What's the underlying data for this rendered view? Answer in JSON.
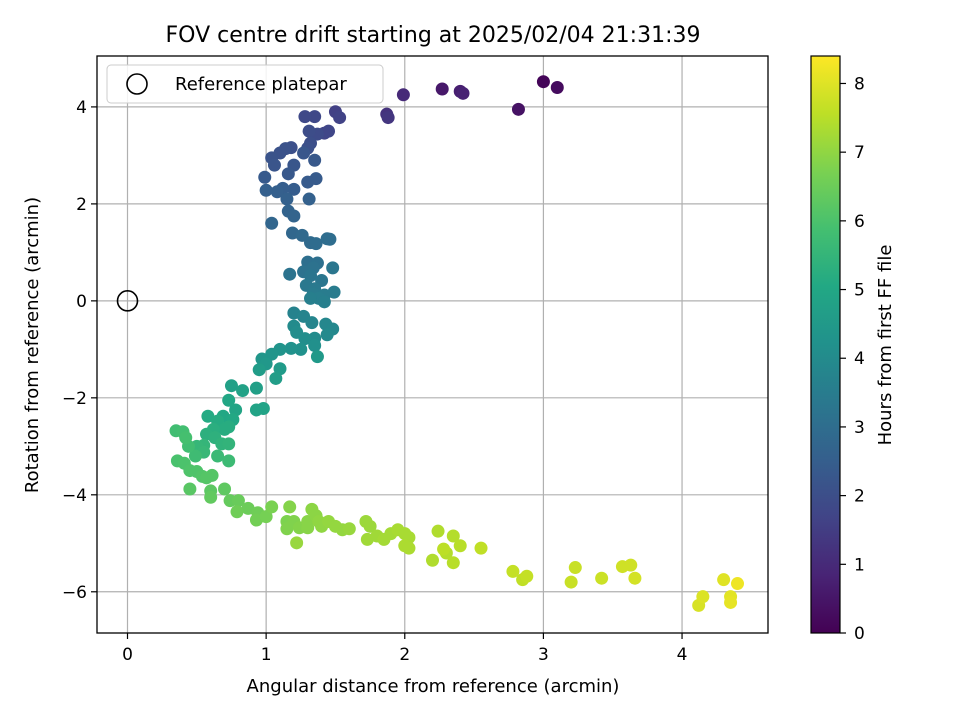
{
  "chart_data": {
    "type": "scatter",
    "title": "FOV centre drift starting at 2025/02/04 21:31:39",
    "xlabel": "Angular distance from reference (arcmin)",
    "ylabel": "Rotation from reference (arcmin)",
    "xlim": [
      -0.22,
      4.62
    ],
    "ylim": [
      -6.85,
      5.05
    ],
    "xticks": [
      0,
      1,
      2,
      3,
      4
    ],
    "yticks": [
      -6,
      -4,
      -2,
      0,
      2,
      4
    ],
    "xtick_labels": [
      "0",
      "1",
      "2",
      "3",
      "4"
    ],
    "ytick_labels": [
      "−6",
      "−4",
      "−2",
      "0",
      "2",
      "4"
    ],
    "grid": true,
    "legend": {
      "position": "top-left",
      "label": "Reference platepar"
    },
    "reference": {
      "x": 0,
      "y": 0
    },
    "colorbar": {
      "label": "Hours from first FF file",
      "min": 0,
      "max": 8.4,
      "ticks": [
        0,
        1,
        2,
        3,
        4,
        5,
        6,
        7,
        8
      ],
      "tick_labels": [
        "0",
        "1",
        "2",
        "3",
        "4",
        "5",
        "6",
        "7",
        "8"
      ],
      "colormap": "viridis"
    },
    "points": [
      [
        3.0,
        4.52,
        0.1
      ],
      [
        3.1,
        4.4,
        0.25
      ],
      [
        2.82,
        3.95,
        0.4
      ],
      [
        2.27,
        4.37,
        0.55
      ],
      [
        2.4,
        4.32,
        0.7
      ],
      [
        2.42,
        4.28,
        0.8
      ],
      [
        1.99,
        4.25,
        1.0
      ],
      [
        1.87,
        3.85,
        1.2
      ],
      [
        1.88,
        3.78,
        1.3
      ],
      [
        1.5,
        3.9,
        1.6
      ],
      [
        1.53,
        3.78,
        1.65
      ],
      [
        1.42,
        3.46,
        1.7
      ],
      [
        1.45,
        3.5,
        1.75
      ],
      [
        1.35,
        3.8,
        1.8
      ],
      [
        1.28,
        3.8,
        1.85
      ],
      [
        1.37,
        3.44,
        1.9
      ],
      [
        1.31,
        3.5,
        1.95
      ],
      [
        1.32,
        3.25,
        2.0
      ],
      [
        1.3,
        3.15,
        2.05
      ],
      [
        1.18,
        3.16,
        2.05
      ],
      [
        1.14,
        3.14,
        2.1
      ],
      [
        1.1,
        3.05,
        2.1
      ],
      [
        1.04,
        2.95,
        2.15
      ],
      [
        1.06,
        2.8,
        2.2
      ],
      [
        1.2,
        2.8,
        2.25
      ],
      [
        1.27,
        3.05,
        2.25
      ],
      [
        1.35,
        2.9,
        2.3
      ],
      [
        1.16,
        2.62,
        2.3
      ],
      [
        0.99,
        2.55,
        2.35
      ],
      [
        1.36,
        2.52,
        2.4
      ],
      [
        1.3,
        2.45,
        2.4
      ],
      [
        1.2,
        2.3,
        2.45
      ],
      [
        1.12,
        2.32,
        2.5
      ],
      [
        1.08,
        2.25,
        2.55
      ],
      [
        1.0,
        2.28,
        2.55
      ],
      [
        1.15,
        2.1,
        2.6
      ],
      [
        1.31,
        2.1,
        2.6
      ],
      [
        1.16,
        1.85,
        2.65
      ],
      [
        1.2,
        1.75,
        2.7
      ],
      [
        1.04,
        1.6,
        2.75
      ],
      [
        1.19,
        1.4,
        2.8
      ],
      [
        1.26,
        1.35,
        2.85
      ],
      [
        1.32,
        1.2,
        2.9
      ],
      [
        1.36,
        1.18,
        2.95
      ],
      [
        1.44,
        1.28,
        3.0
      ],
      [
        1.46,
        1.27,
        3.0
      ],
      [
        1.3,
        0.8,
        3.05
      ],
      [
        1.37,
        0.78,
        3.1
      ],
      [
        1.34,
        0.68,
        3.15
      ],
      [
        1.27,
        0.6,
        3.15
      ],
      [
        1.17,
        0.55,
        3.2
      ],
      [
        1.32,
        0.52,
        3.25
      ],
      [
        1.4,
        0.42,
        3.3
      ],
      [
        1.48,
        0.68,
        3.3
      ],
      [
        1.29,
        0.32,
        3.35
      ],
      [
        1.35,
        0.25,
        3.4
      ],
      [
        1.34,
        0.15,
        3.45
      ],
      [
        1.42,
        0.12,
        3.5
      ],
      [
        1.49,
        0.18,
        3.5
      ],
      [
        1.38,
        0.05,
        3.55
      ],
      [
        1.42,
        -0.02,
        3.6
      ],
      [
        1.32,
        0.05,
        3.6
      ],
      [
        1.2,
        -0.25,
        3.7
      ],
      [
        1.27,
        -0.32,
        3.75
      ],
      [
        1.33,
        -0.45,
        3.8
      ],
      [
        1.43,
        -0.48,
        3.85
      ],
      [
        1.48,
        -0.58,
        3.9
      ],
      [
        1.44,
        -0.7,
        3.95
      ],
      [
        1.35,
        -0.77,
        4.0
      ],
      [
        1.2,
        -0.52,
        4.0
      ],
      [
        1.22,
        -0.65,
        4.05
      ],
      [
        1.28,
        -0.78,
        4.1
      ],
      [
        1.35,
        -0.92,
        4.15
      ],
      [
        1.25,
        -1.0,
        4.2
      ],
      [
        1.18,
        -0.98,
        4.25
      ],
      [
        1.1,
        -1.0,
        4.3
      ],
      [
        1.04,
        -1.1,
        4.35
      ],
      [
        0.97,
        -1.2,
        4.4
      ],
      [
        1.0,
        -1.3,
        4.45
      ],
      [
        1.37,
        -1.15,
        4.5
      ],
      [
        1.1,
        -1.4,
        4.55
      ],
      [
        0.95,
        -1.42,
        4.6
      ],
      [
        1.07,
        -1.6,
        4.65
      ],
      [
        0.93,
        -1.8,
        4.7
      ],
      [
        0.75,
        -1.75,
        4.75
      ],
      [
        0.83,
        -1.85,
        4.8
      ],
      [
        0.98,
        -2.22,
        4.85
      ],
      [
        0.93,
        -2.25,
        4.85
      ],
      [
        0.78,
        -2.25,
        4.9
      ],
      [
        0.73,
        -2.05,
        4.95
      ],
      [
        0.69,
        -2.38,
        5.0
      ],
      [
        0.76,
        -2.45,
        5.05
      ],
      [
        0.58,
        -2.38,
        5.1
      ],
      [
        0.65,
        -2.48,
        5.15
      ],
      [
        0.7,
        -2.65,
        5.2
      ],
      [
        0.73,
        -2.6,
        5.2
      ],
      [
        0.62,
        -2.65,
        5.25
      ],
      [
        0.57,
        -2.75,
        5.3
      ],
      [
        0.63,
        -2.82,
        5.35
      ],
      [
        0.68,
        -2.95,
        5.4
      ],
      [
        0.73,
        -2.95,
        5.45
      ],
      [
        0.55,
        -2.98,
        5.5
      ],
      [
        0.5,
        -3.0,
        5.55
      ],
      [
        0.55,
        -3.12,
        5.6
      ],
      [
        0.65,
        -3.2,
        5.65
      ],
      [
        0.73,
        -3.3,
        5.7
      ],
      [
        0.49,
        -3.2,
        5.75
      ],
      [
        0.44,
        -3.0,
        5.8
      ],
      [
        0.35,
        -2.68,
        5.8
      ],
      [
        0.4,
        -2.7,
        5.85
      ],
      [
        0.42,
        -2.82,
        5.9
      ],
      [
        0.36,
        -3.3,
        5.95
      ],
      [
        0.41,
        -3.35,
        6.0
      ],
      [
        0.45,
        -3.5,
        6.05
      ],
      [
        0.5,
        -3.52,
        6.05
      ],
      [
        0.54,
        -3.62,
        6.1
      ],
      [
        0.61,
        -3.6,
        6.15
      ],
      [
        0.57,
        -3.65,
        6.15
      ],
      [
        0.45,
        -3.88,
        6.2
      ],
      [
        0.6,
        -3.92,
        6.25
      ],
      [
        0.7,
        -3.88,
        6.3
      ],
      [
        0.6,
        -4.05,
        6.35
      ],
      [
        0.74,
        -4.12,
        6.4
      ],
      [
        0.8,
        -4.12,
        6.45
      ],
      [
        0.87,
        -4.28,
        6.5
      ],
      [
        0.79,
        -4.35,
        6.55
      ],
      [
        0.94,
        -4.37,
        6.55
      ],
      [
        0.93,
        -4.52,
        6.6
      ],
      [
        1.0,
        -4.45,
        6.65
      ],
      [
        1.04,
        -4.25,
        6.7
      ],
      [
        1.15,
        -4.55,
        6.75
      ],
      [
        1.15,
        -4.7,
        6.8
      ],
      [
        1.2,
        -4.55,
        6.8
      ],
      [
        1.24,
        -4.68,
        6.85
      ],
      [
        1.17,
        -4.25,
        6.85
      ],
      [
        1.3,
        -4.68,
        6.9
      ],
      [
        1.3,
        -4.55,
        6.9
      ],
      [
        1.33,
        -4.3,
        6.95
      ],
      [
        1.36,
        -4.43,
        6.95
      ],
      [
        1.38,
        -4.55,
        7.0
      ],
      [
        1.4,
        -4.65,
        7.0
      ],
      [
        1.45,
        -4.55,
        7.05
      ],
      [
        1.5,
        -4.65,
        7.05
      ],
      [
        1.55,
        -4.72,
        7.05
      ],
      [
        1.6,
        -4.7,
        7.1
      ],
      [
        1.22,
        -4.99,
        7.1
      ],
      [
        1.72,
        -4.55,
        7.15
      ],
      [
        1.75,
        -4.65,
        7.15
      ],
      [
        1.73,
        -4.92,
        7.2
      ],
      [
        1.8,
        -4.85,
        7.2
      ],
      [
        1.85,
        -4.92,
        7.25
      ],
      [
        1.9,
        -4.8,
        7.25
      ],
      [
        1.95,
        -4.72,
        7.3
      ],
      [
        2.0,
        -4.8,
        7.3
      ],
      [
        2.03,
        -4.88,
        7.3
      ],
      [
        2.0,
        -5.05,
        7.35
      ],
      [
        2.03,
        -5.1,
        7.35
      ],
      [
        2.2,
        -5.35,
        7.4
      ],
      [
        2.24,
        -4.75,
        7.4
      ],
      [
        2.3,
        -5.2,
        7.45
      ],
      [
        2.35,
        -4.85,
        7.45
      ],
      [
        2.35,
        -5.4,
        7.5
      ],
      [
        2.4,
        -5.05,
        7.5
      ],
      [
        2.28,
        -5.12,
        7.55
      ],
      [
        2.55,
        -5.1,
        7.6
      ],
      [
        2.85,
        -5.75,
        7.6
      ],
      [
        2.78,
        -5.58,
        7.65
      ],
      [
        2.88,
        -5.68,
        7.65
      ],
      [
        3.2,
        -5.8,
        7.7
      ],
      [
        3.23,
        -5.5,
        7.7
      ],
      [
        3.42,
        -5.72,
        7.75
      ],
      [
        3.57,
        -5.48,
        7.8
      ],
      [
        3.63,
        -5.45,
        7.8
      ],
      [
        3.66,
        -5.72,
        7.85
      ],
      [
        4.12,
        -6.28,
        7.9
      ],
      [
        4.15,
        -6.1,
        7.95
      ],
      [
        4.3,
        -5.75,
        8.0
      ],
      [
        4.35,
        -6.1,
        8.05
      ],
      [
        4.35,
        -6.22,
        8.1
      ],
      [
        4.4,
        -5.83,
        8.2
      ]
    ]
  }
}
